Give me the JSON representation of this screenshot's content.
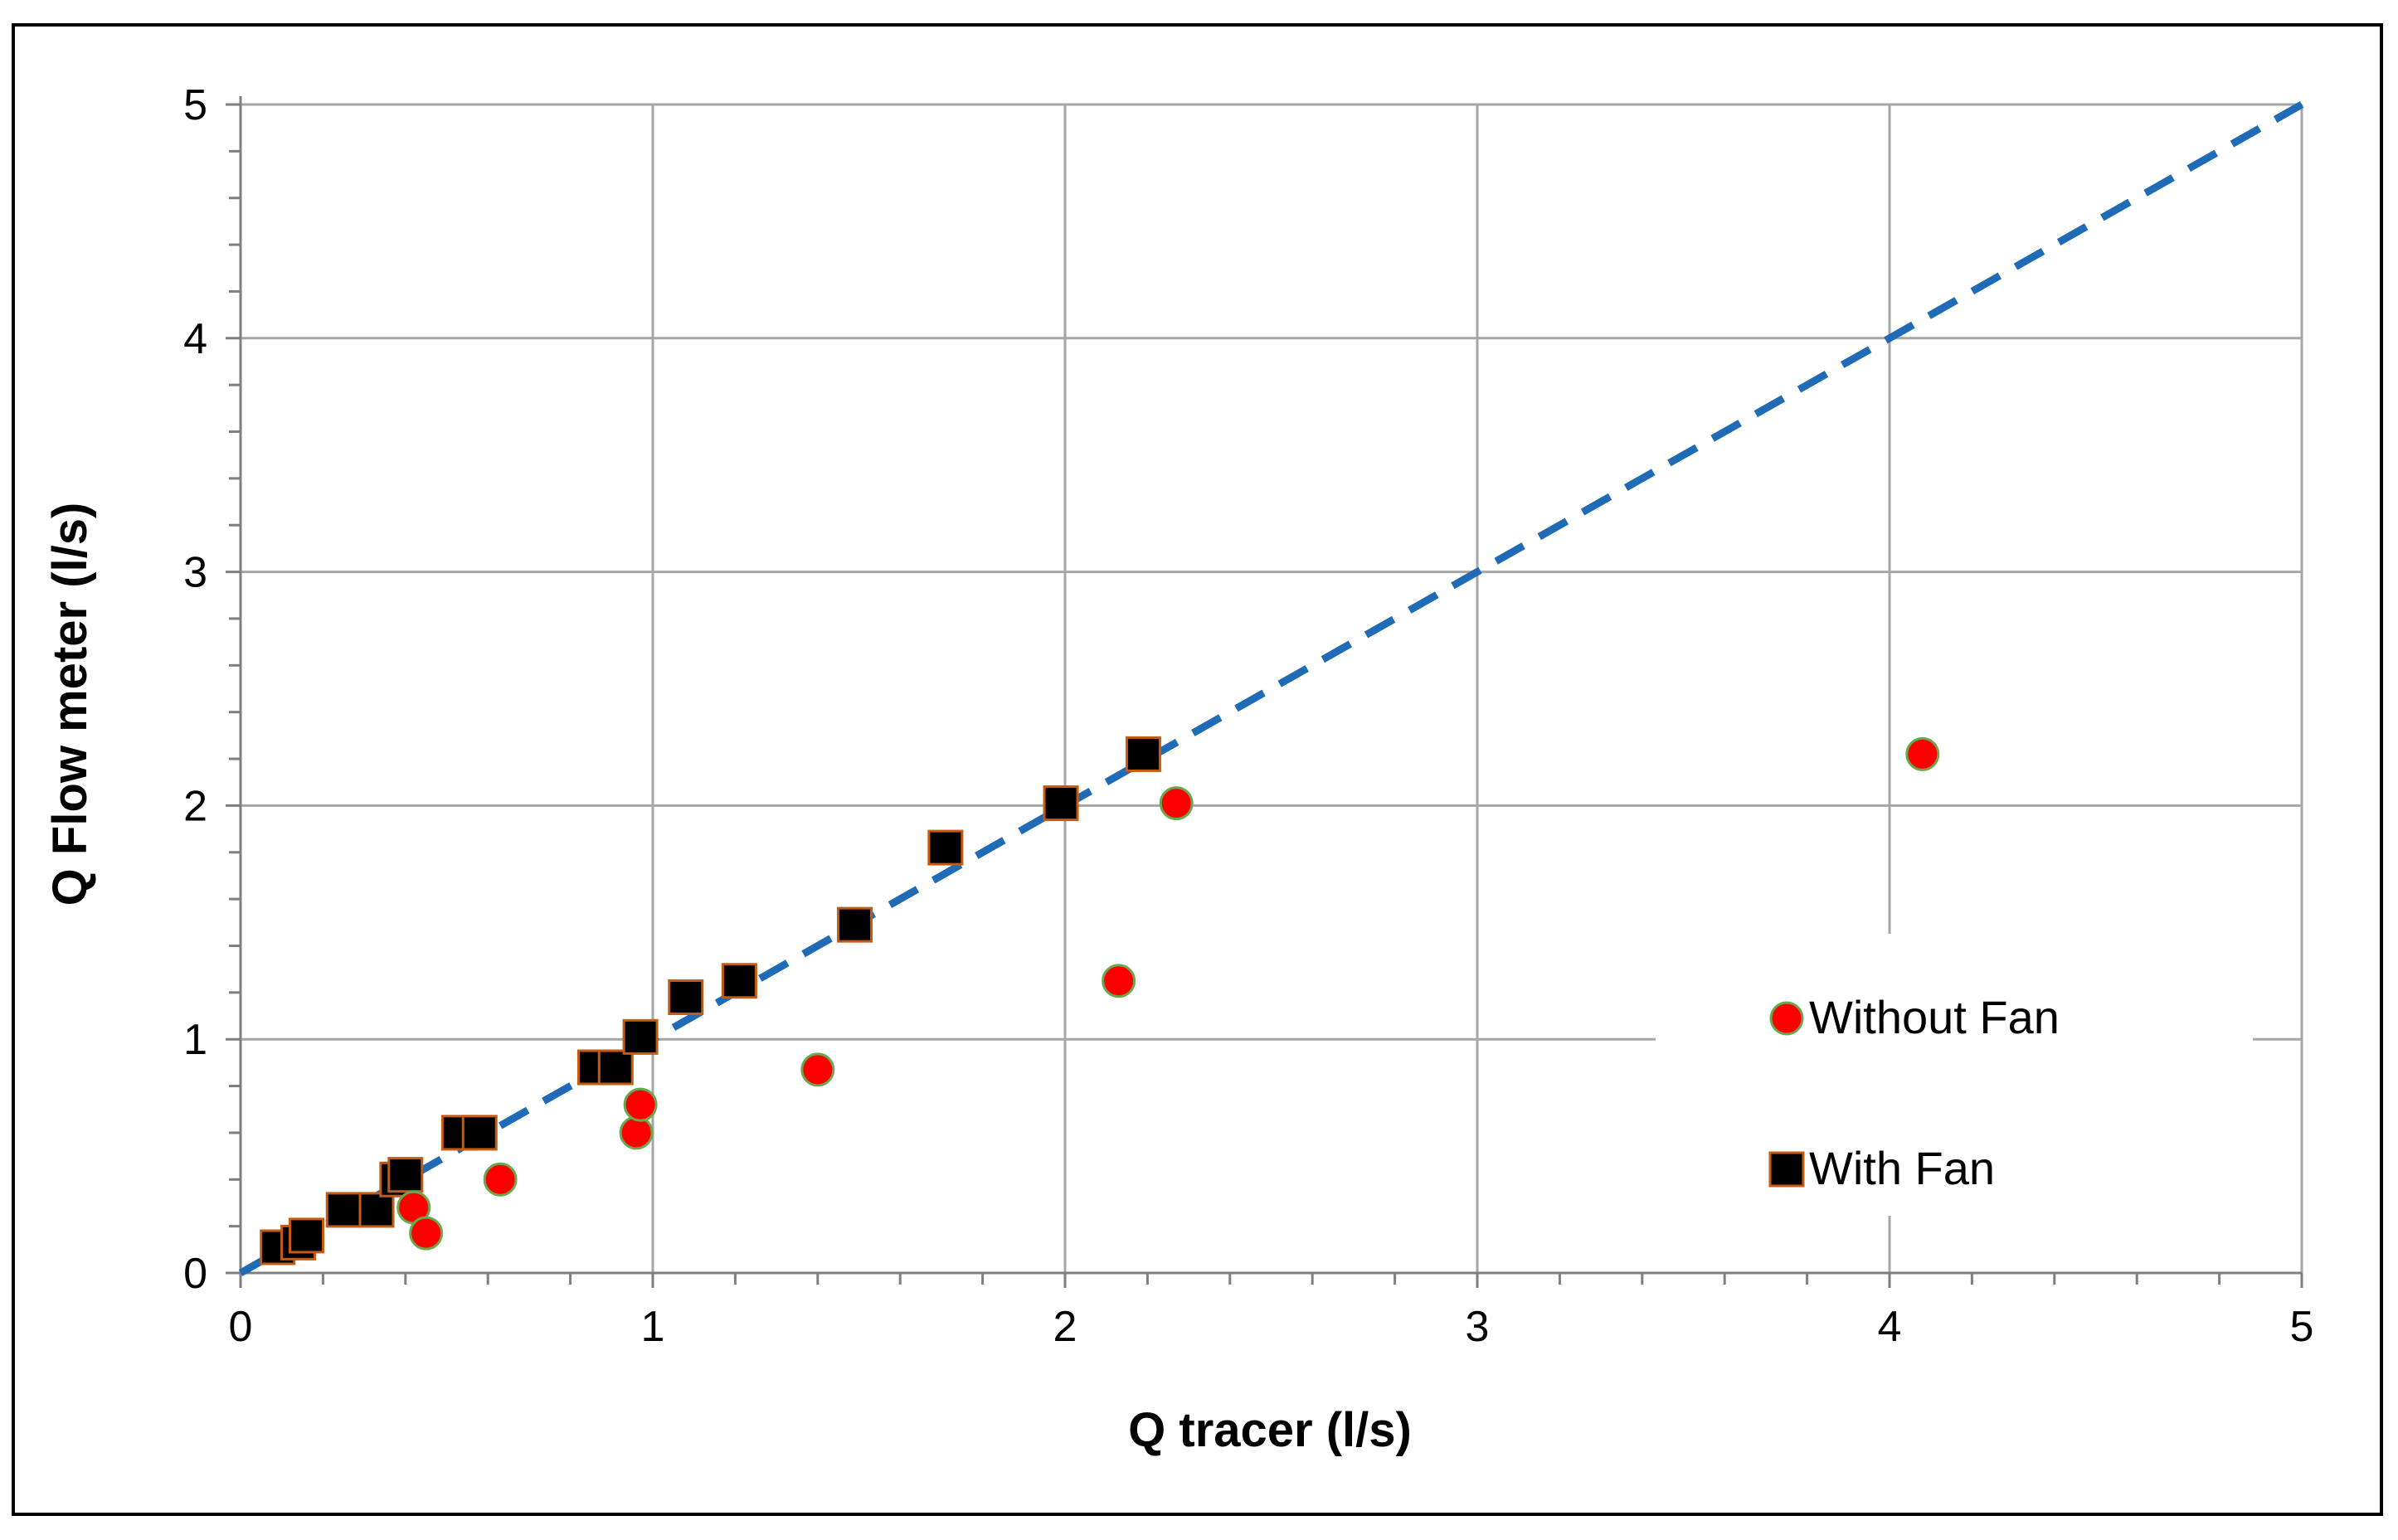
{
  "chart_data": {
    "type": "scatter",
    "xlabel": "Q tracer (l/s)",
    "ylabel": "Q  Flow meter (l/s)",
    "xlim": [
      0,
      5
    ],
    "ylim": [
      0,
      5
    ],
    "x_ticks": [
      "0",
      "1",
      "2",
      "3",
      "4",
      "5"
    ],
    "y_ticks": [
      "0",
      "1",
      "2",
      "3",
      "4",
      "5"
    ],
    "grid": true,
    "legend_position": "bottom-right",
    "series": [
      {
        "name": "Without Fan",
        "marker": "circle",
        "color": "#ff0000",
        "edge_color": "#6aa84f",
        "points": [
          {
            "x": 0.42,
            "y": 0.28
          },
          {
            "x": 0.45,
            "y": 0.17
          },
          {
            "x": 0.63,
            "y": 0.4
          },
          {
            "x": 0.96,
            "y": 0.6
          },
          {
            "x": 0.97,
            "y": 0.72
          },
          {
            "x": 1.4,
            "y": 0.87
          },
          {
            "x": 2.13,
            "y": 1.25
          },
          {
            "x": 2.27,
            "y": 2.01
          },
          {
            "x": 4.08,
            "y": 2.22
          }
        ]
      },
      {
        "name": "With Fan",
        "marker": "square",
        "color": "#000000",
        "edge_color": "#c55a11",
        "points": [
          {
            "x": 0.09,
            "y": 0.11
          },
          {
            "x": 0.14,
            "y": 0.13
          },
          {
            "x": 0.16,
            "y": 0.16
          },
          {
            "x": 0.25,
            "y": 0.27
          },
          {
            "x": 0.33,
            "y": 0.27
          },
          {
            "x": 0.38,
            "y": 0.4
          },
          {
            "x": 0.4,
            "y": 0.42
          },
          {
            "x": 0.53,
            "y": 0.6
          },
          {
            "x": 0.58,
            "y": 0.6
          },
          {
            "x": 0.86,
            "y": 0.88
          },
          {
            "x": 0.91,
            "y": 0.88
          },
          {
            "x": 0.97,
            "y": 1.01
          },
          {
            "x": 1.08,
            "y": 1.18
          },
          {
            "x": 1.21,
            "y": 1.25
          },
          {
            "x": 1.49,
            "y": 1.49
          },
          {
            "x": 1.71,
            "y": 1.82
          },
          {
            "x": 1.99,
            "y": 2.01
          },
          {
            "x": 2.19,
            "y": 2.22
          }
        ]
      }
    ],
    "reference_line": {
      "type": "1:1 dashed",
      "color": "#1f6bb5",
      "from": [
        0,
        0
      ],
      "to": [
        5,
        5
      ]
    }
  }
}
